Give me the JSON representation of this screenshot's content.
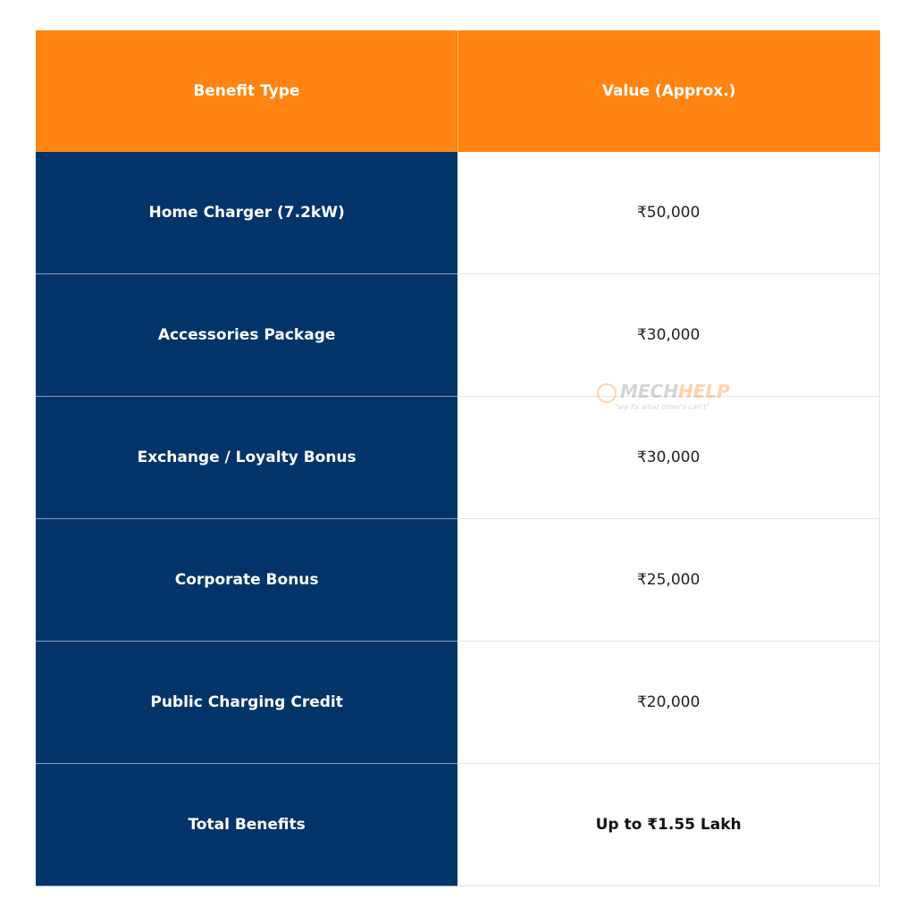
{
  "table": {
    "headers": [
      "Benefit Type",
      "Value (Approx.)"
    ],
    "rows": [
      {
        "benefit": "Home Charger (7.2kW)",
        "value": "₹50,000"
      },
      {
        "benefit": "Accessories Package",
        "value": "₹30,000"
      },
      {
        "benefit": "Exchange / Loyalty Bonus",
        "value": "₹30,000"
      },
      {
        "benefit": "Corporate Bonus",
        "value": "₹25,000"
      },
      {
        "benefit": "Public Charging Credit",
        "value": "₹20,000"
      },
      {
        "benefit": "Total Benefits",
        "value": "Up to ₹1.55 Lakh"
      }
    ]
  },
  "watermark": {
    "brand_a": "MECH",
    "brand_b": "HELP",
    "tagline": "\"we fix what other's can't\""
  },
  "colors": {
    "header": "#FF8412",
    "key_column": "#02346A"
  }
}
